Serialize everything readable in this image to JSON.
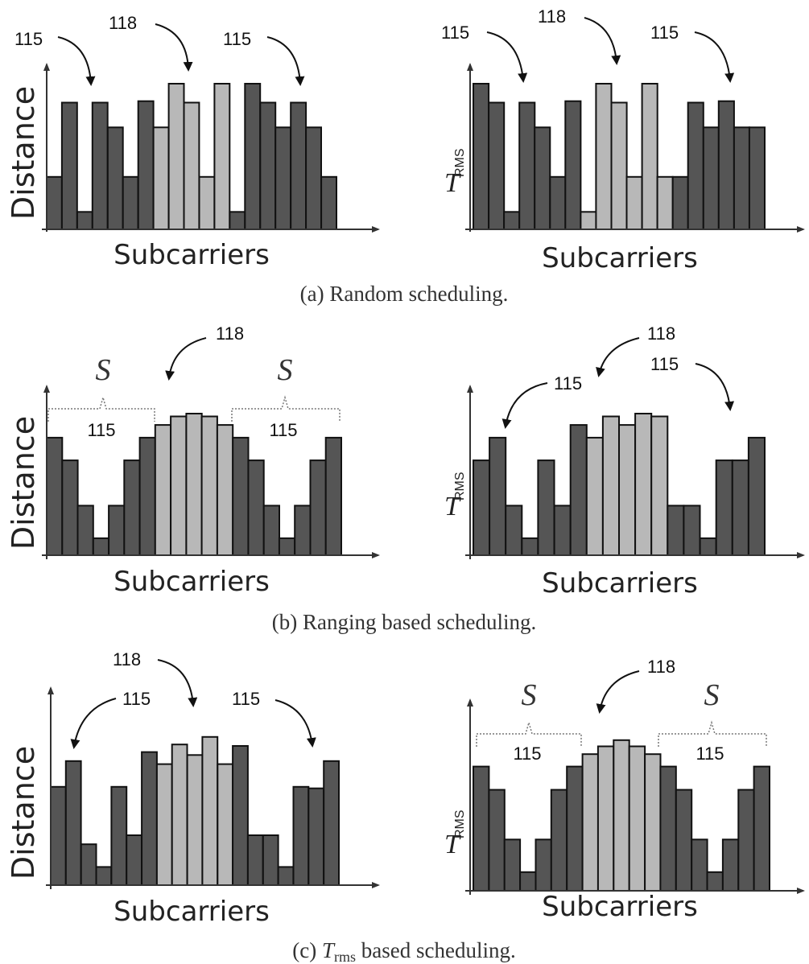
{
  "chart_data": [
    {
      "type": "bar",
      "panel": "a",
      "ylabel": "Distance",
      "xlabel": "Subcarriers",
      "values": [
        0.36,
        0.87,
        0.12,
        0.87,
        0.7,
        0.36,
        0.88,
        0.7,
        1.0,
        0.87,
        0.36,
        1.0,
        0.12,
        1.0,
        0.87,
        0.7,
        0.87,
        0.7,
        0.36
      ],
      "kinds": [
        "115",
        "115",
        "115",
        "115",
        "115",
        "115",
        "115",
        "118",
        "118",
        "118",
        "118",
        "118",
        "115",
        "115",
        "115",
        "115",
        "115",
        "115",
        "115"
      ],
      "annotations": [
        "115",
        "118",
        "115"
      ]
    },
    {
      "type": "bar",
      "panel": "a",
      "ylabel_symbol": "T",
      "ylabel_subscript": "RMS",
      "xlabel": "Subcarriers",
      "values": [
        1.0,
        0.87,
        0.12,
        0.87,
        0.7,
        0.36,
        0.88,
        0.12,
        1.0,
        0.87,
        0.36,
        1.0,
        0.36,
        0.36,
        0.87,
        0.7,
        0.88,
        0.7,
        0.7
      ],
      "kinds": [
        "115",
        "115",
        "115",
        "115",
        "115",
        "115",
        "115",
        "118",
        "118",
        "118",
        "118",
        "118",
        "118",
        "115",
        "115",
        "115",
        "115",
        "115",
        "115"
      ],
      "annotations": [
        "115",
        "118",
        "115"
      ]
    },
    {
      "type": "bar",
      "panel": "b",
      "ylabel": "Distance",
      "xlabel": "Subcarriers",
      "values": [
        0.83,
        0.67,
        0.35,
        0.12,
        0.35,
        0.67,
        0.83,
        0.92,
        0.98,
        1.0,
        0.98,
        0.92,
        0.83,
        0.67,
        0.35,
        0.12,
        0.35,
        0.67,
        0.83
      ],
      "kinds": [
        "115",
        "115",
        "115",
        "115",
        "115",
        "115",
        "115",
        "118",
        "118",
        "118",
        "118",
        "118",
        "115",
        "115",
        "115",
        "115",
        "115",
        "115",
        "115"
      ],
      "annotations": [
        "S",
        "115",
        "118",
        "S",
        "115"
      ]
    },
    {
      "type": "bar",
      "panel": "b",
      "ylabel_symbol": "T",
      "ylabel_subscript": "RMS",
      "xlabel": "Subcarriers",
      "values": [
        0.67,
        0.83,
        0.35,
        0.12,
        0.67,
        0.35,
        0.92,
        0.83,
        0.98,
        0.92,
        1.0,
        0.98,
        0.35,
        0.35,
        0.12,
        0.67,
        0.67,
        0.83
      ],
      "kinds": [
        "115",
        "115",
        "115",
        "115",
        "115",
        "115",
        "115",
        "118",
        "118",
        "118",
        "118",
        "118",
        "115",
        "115",
        "115",
        "115",
        "115",
        "115"
      ],
      "annotations": [
        "115",
        "118",
        "115"
      ]
    },
    {
      "type": "bar",
      "panel": "c",
      "ylabel": "Distance",
      "xlabel": "Subcarriers",
      "values": [
        0.65,
        0.82,
        0.27,
        0.12,
        0.65,
        0.33,
        0.88,
        0.8,
        0.93,
        0.86,
        0.98,
        0.8,
        0.92,
        0.33,
        0.33,
        0.12,
        0.65,
        0.64,
        0.82
      ],
      "kinds": [
        "115",
        "115",
        "115",
        "115",
        "115",
        "115",
        "115",
        "118",
        "118",
        "118",
        "118",
        "118",
        "115",
        "115",
        "115",
        "115",
        "115",
        "115",
        "115"
      ],
      "annotations": [
        "118",
        "115",
        "115"
      ]
    },
    {
      "type": "bar",
      "panel": "c",
      "ylabel_symbol": "T",
      "ylabel_subscript": "RMS",
      "xlabel": "Subcarriers",
      "values": [
        0.8,
        0.65,
        0.33,
        0.12,
        0.33,
        0.65,
        0.8,
        0.88,
        0.93,
        0.97,
        0.93,
        0.88,
        0.8,
        0.65,
        0.33,
        0.12,
        0.33,
        0.65,
        0.8
      ],
      "kinds": [
        "115",
        "115",
        "115",
        "115",
        "115",
        "115",
        "115",
        "118",
        "118",
        "118",
        "118",
        "118",
        "115",
        "115",
        "115",
        "115",
        "115",
        "115",
        "115"
      ],
      "annotations": [
        "S",
        "115",
        "118",
        "S",
        "115"
      ]
    }
  ],
  "captions": {
    "a": "(a) Random scheduling.",
    "b": "(b) Ranging based scheduling.",
    "c_prefix": "(c) ",
    "c_sym": "T",
    "c_sub": "rms",
    "c_suffix": " based scheduling."
  },
  "colors": {
    "dark": "#555555",
    "light": "#b8b8b8"
  }
}
